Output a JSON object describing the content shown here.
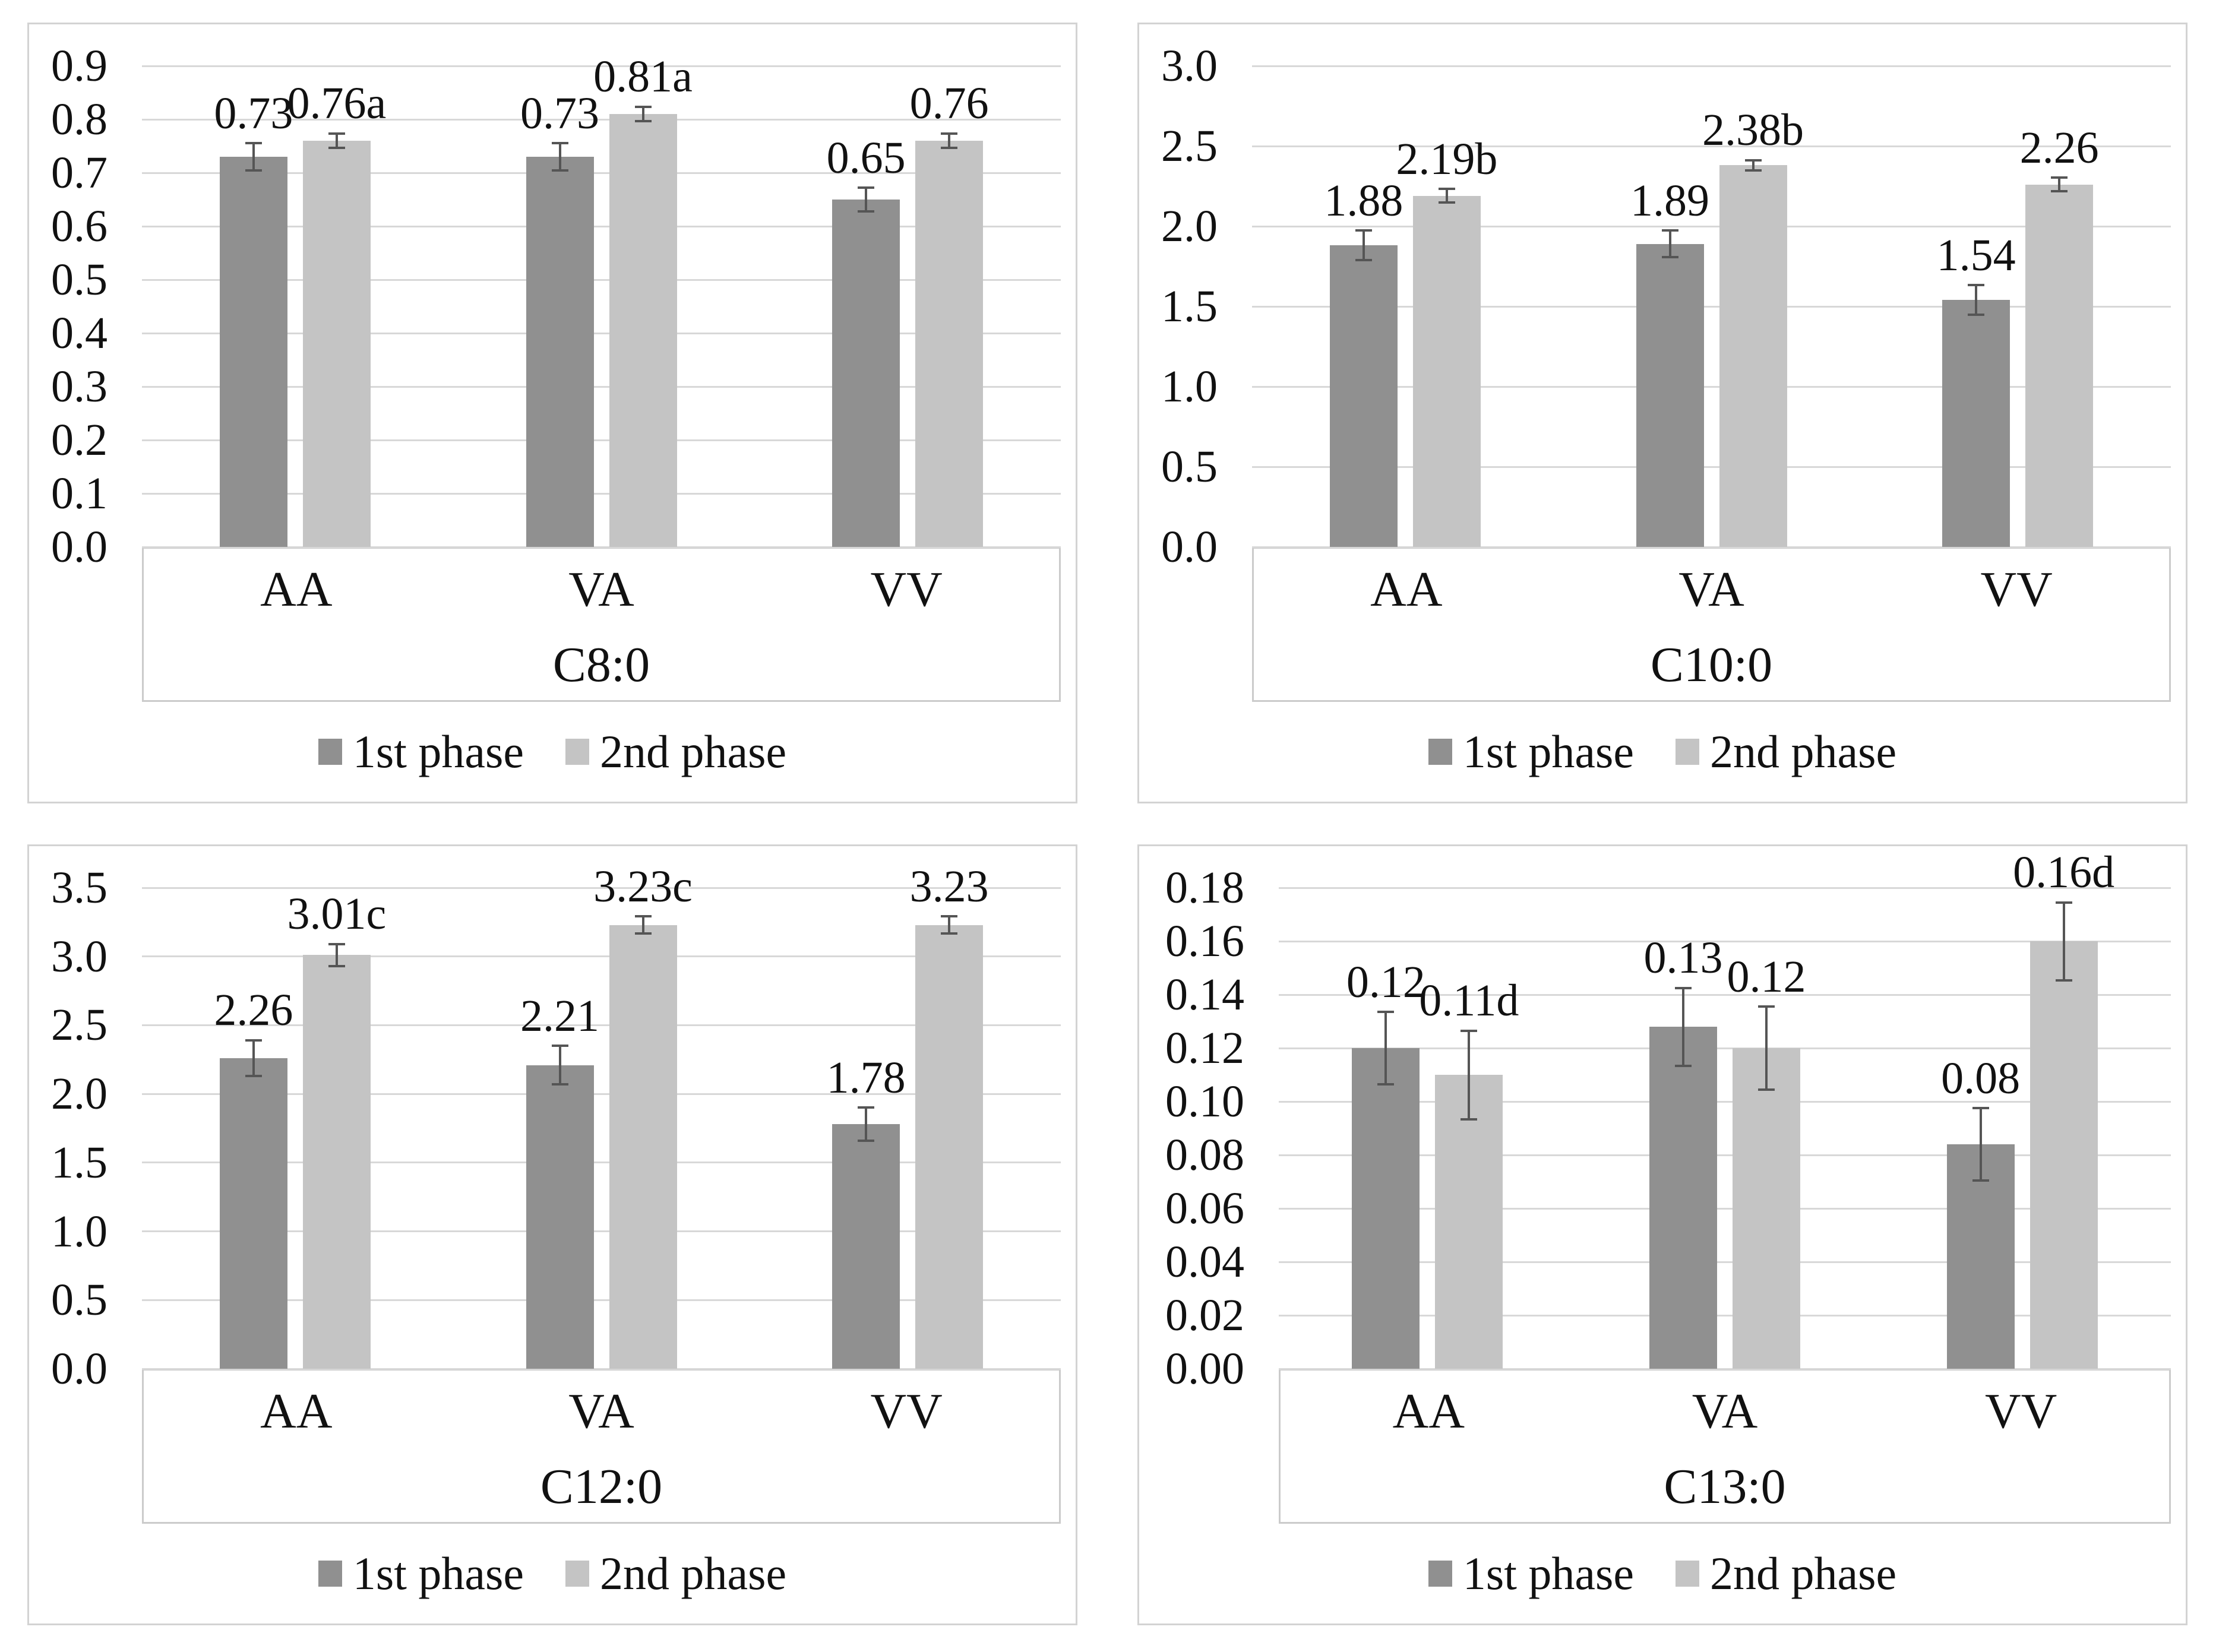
{
  "figure_name": "fatty acid content bar charts",
  "legend": {
    "series1_label": "1st phase",
    "series2_label": "2nd phase"
  },
  "colors": {
    "series1": "#909090",
    "series2": "#c4c4c4",
    "gridline": "#d8d8d8",
    "panel_border": "#d3d3d3",
    "box_border": "#cbcbcb",
    "error_bar": "#555555",
    "text": "#111111",
    "background": "#ffffff"
  },
  "chart_data": [
    {
      "type": "bar",
      "axis_title": "C8:0",
      "categories": [
        "AA",
        "VA",
        "VV"
      ],
      "series": [
        {
          "name": "1st phase",
          "values": [
            0.73,
            0.73,
            0.65
          ],
          "labels": [
            "0.73",
            "0.73",
            "0.65"
          ],
          "errors": [
            0.028,
            0.028,
            0.024
          ]
        },
        {
          "name": "2nd phase",
          "values": [
            0.76,
            0.81,
            0.76
          ],
          "labels": [
            "0.76a",
            "0.81a",
            "0.76"
          ],
          "errors": [
            0.016,
            0.016,
            0.016
          ]
        }
      ],
      "ylim": [
        0,
        0.9
      ],
      "ystep": 0.1,
      "ydecimals": 1,
      "grid": true,
      "legend_position": "bottom"
    },
    {
      "type": "bar",
      "axis_title": "C10:0",
      "categories": [
        "AA",
        "VA",
        "VV"
      ],
      "series": [
        {
          "name": "1st phase",
          "values": [
            1.88,
            1.89,
            1.54
          ],
          "labels": [
            "1.88",
            "1.89",
            "1.54"
          ],
          "errors": [
            0.1,
            0.09,
            0.1
          ]
        },
        {
          "name": "2nd phase",
          "values": [
            2.19,
            2.38,
            2.26
          ],
          "labels": [
            "2.19b",
            "2.38b",
            "2.26"
          ],
          "errors": [
            0.05,
            0.04,
            0.05
          ]
        }
      ],
      "ylim": [
        0,
        3.0
      ],
      "ystep": 0.5,
      "ydecimals": 1,
      "grid": true,
      "legend_position": "bottom"
    },
    {
      "type": "bar",
      "axis_title": "C12:0",
      "categories": [
        "AA",
        "VA",
        "VV"
      ],
      "series": [
        {
          "name": "1st phase",
          "values": [
            2.26,
            2.21,
            1.78
          ],
          "labels": [
            "2.26",
            "2.21",
            "1.78"
          ],
          "errors": [
            0.14,
            0.15,
            0.13
          ]
        },
        {
          "name": "2nd phase",
          "values": [
            3.01,
            3.23,
            3.23
          ],
          "labels": [
            "3.01c",
            "3.23c",
            "3.23"
          ],
          "errors": [
            0.09,
            0.07,
            0.07
          ]
        }
      ],
      "ylim": [
        0,
        3.5
      ],
      "ystep": 0.5,
      "ydecimals": 1,
      "grid": true,
      "legend_position": "bottom"
    },
    {
      "type": "bar",
      "axis_title": "C13:0",
      "categories": [
        "AA",
        "VA",
        "VV"
      ],
      "series": [
        {
          "name": "1st phase",
          "values": [
            0.12,
            0.128,
            0.084
          ],
          "labels": [
            "0.12",
            "0.13",
            "0.08"
          ],
          "errors": [
            0.014,
            0.015,
            0.014
          ]
        },
        {
          "name": "2nd phase",
          "values": [
            0.11,
            0.12,
            0.16
          ],
          "labels": [
            "0.11d",
            "0.12",
            "0.16d"
          ],
          "errors": [
            0.017,
            0.016,
            0.015
          ]
        }
      ],
      "ylim": [
        0,
        0.18
      ],
      "ystep": 0.02,
      "ydecimals": 2,
      "grid": true,
      "legend_position": "bottom"
    }
  ]
}
